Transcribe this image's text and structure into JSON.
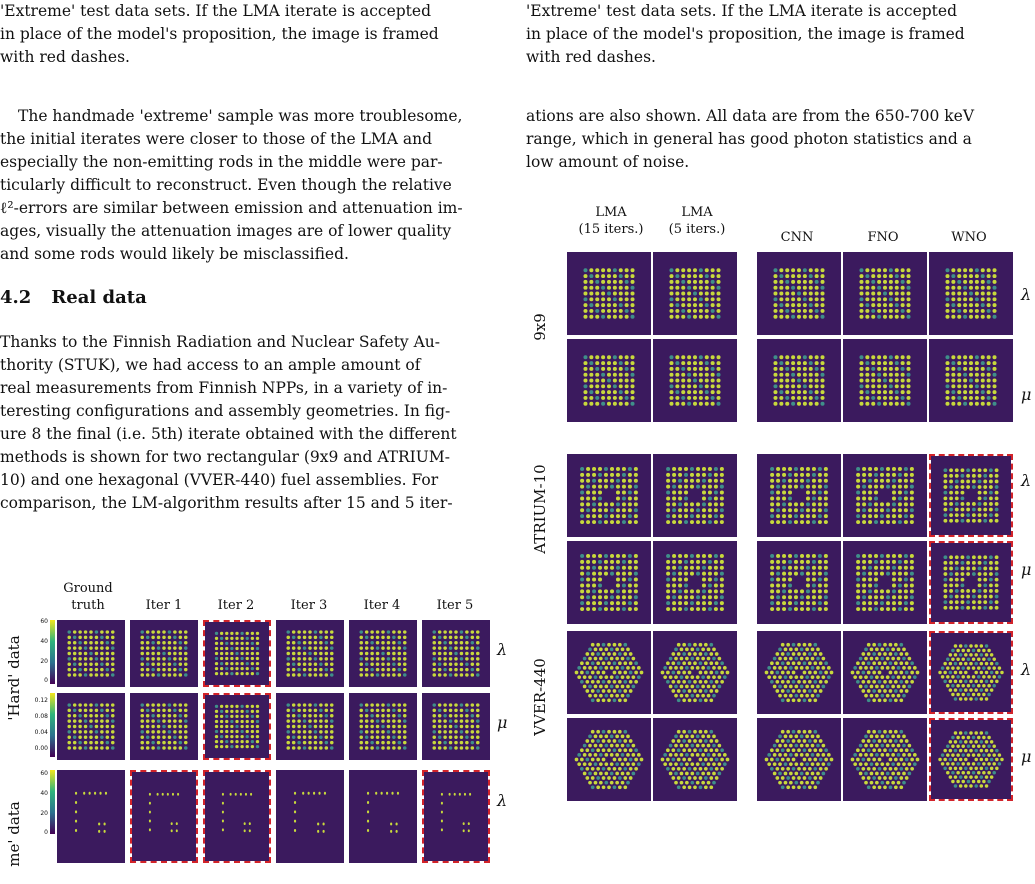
{
  "left": {
    "caption_tail": [
      "'Extreme' test data sets. If the LMA iterate is accepted",
      "in place of the model's proposition, the image is framed",
      "with red dashes."
    ],
    "para1": [
      "The handmade 'extreme' sample was more troublesome,",
      "the initial iterates were closer to those of the LMA and",
      "especially the non-emitting rods in the middle were par-",
      "ticularly difficult to reconstruct. Even though the relative",
      "ℓ²-errors are similar between emission and attenuation im-",
      "ages, visually the attenuation images are of lower quality",
      "and some rods would likely be misclassified."
    ],
    "section": {
      "number": "4.2",
      "title": "Real data"
    },
    "para2": [
      "Thanks to the Finnish Radiation and Nuclear Safety Au-",
      "thority (STUK), we had access to an ample amount of",
      "real measurements from Finnish NPPs, in a variety of in-",
      "teresting configurations and assembly geometries. In fig-",
      "ure 8 the final (i.e. 5th) iterate obtained with the different",
      "methods is shown for two rectangular (9x9 and ATRIUM-",
      "10) and one hexagonal (VVER-440) fuel assemblies. For",
      "comparison, the LM-algorithm results after 15 and 5 iter-"
    ],
    "figure": {
      "columns": [
        "Ground\ntruth",
        "Iter 1",
        "Iter 2",
        "Iter 3",
        "Iter 4",
        "Iter 5"
      ],
      "rows": [
        {
          "group": "'Hard' data",
          "symbol": "λ",
          "dashed": [
            false,
            false,
            true,
            false,
            false,
            false
          ]
        },
        {
          "group": "'Hard' data",
          "symbol": "μ",
          "dashed": [
            false,
            false,
            true,
            false,
            false,
            false
          ]
        },
        {
          "group": "me' data",
          "symbol": "λ",
          "dashed": [
            false,
            true,
            true,
            false,
            false,
            true
          ]
        }
      ],
      "colorbar_lambda": [
        "60",
        "40",
        "20",
        "0"
      ],
      "colorbar_mu": [
        "0.12",
        "0.08",
        "0.04",
        "0.00"
      ]
    }
  },
  "right": {
    "caption_tail": [
      "'Extreme' test data sets. If the LMA iterate is accepted",
      "in place of the model's proposition, the image is framed",
      "with red dashes."
    ],
    "para": [
      "ations are also shown. All data are from the 650-700 keV",
      "range, which in general has good photon statistics and a",
      "low amount of noise."
    ],
    "figure": {
      "columns": [
        "LMA\n(15 iters.)",
        "LMA\n(5 iters.)",
        "CNN",
        "FNO",
        "WNO"
      ],
      "groups": [
        {
          "label": "9x9",
          "rows": [
            {
              "symbol": "λ",
              "dashed": [
                false,
                false,
                false,
                false,
                false
              ]
            },
            {
              "symbol": "μ",
              "dashed": [
                false,
                false,
                false,
                false,
                false
              ]
            }
          ]
        },
        {
          "label": "ATRIUM-10",
          "rows": [
            {
              "symbol": "λ",
              "dashed": [
                false,
                false,
                false,
                false,
                true
              ]
            },
            {
              "symbol": "μ",
              "dashed": [
                false,
                false,
                false,
                false,
                true
              ]
            }
          ]
        },
        {
          "label": "VVER-440",
          "rows": [
            {
              "symbol": "λ",
              "dashed": [
                false,
                false,
                false,
                false,
                true
              ]
            },
            {
              "symbol": "μ",
              "dashed": [
                false,
                false,
                false,
                false,
                true
              ]
            }
          ]
        }
      ]
    }
  },
  "colors": {
    "tile_bg": "#3b1a5e",
    "rod": "#c8d93c",
    "rod_dim": "#3f8f8a",
    "dash": "#d2232a"
  }
}
